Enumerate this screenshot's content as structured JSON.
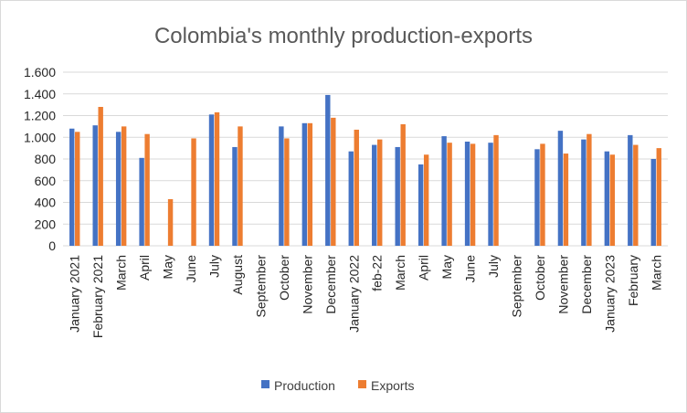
{
  "chart_data": {
    "type": "bar",
    "title": "Colombia's monthly production-exports",
    "xlabel": "",
    "ylabel": "",
    "ylim": [
      0,
      1600
    ],
    "yticks": [
      0,
      200,
      400,
      600,
      800,
      1000,
      1200,
      1400,
      1600
    ],
    "ytick_labels": [
      "0",
      "200",
      "400",
      "600",
      "800",
      "1.000",
      "1.200",
      "1.400",
      "1.600"
    ],
    "grid": true,
    "legend_position": "bottom",
    "categories": [
      "January 2021",
      "February 2021",
      "March",
      "April",
      "May",
      "June",
      "July",
      "August",
      "September",
      "October",
      "November",
      "December",
      "January 2022",
      "feb-22",
      "March",
      "April",
      "May",
      "June",
      "July",
      "September",
      "October",
      "November",
      "December",
      "January 2023",
      "February",
      "March"
    ],
    "series": [
      {
        "name": "Production",
        "color": "#4472c4",
        "values": [
          1080,
          1110,
          1050,
          810,
          null,
          null,
          1210,
          910,
          null,
          1100,
          1130,
          1390,
          870,
          930,
          910,
          750,
          1010,
          960,
          950,
          null,
          890,
          1060,
          980,
          870,
          1020,
          800
        ]
      },
      {
        "name": "Exports",
        "color": "#ed7d31",
        "values": [
          1050,
          1280,
          1100,
          1030,
          430,
          990,
          1230,
          1100,
          null,
          990,
          1130,
          1180,
          1070,
          980,
          1120,
          840,
          950,
          940,
          1020,
          null,
          940,
          850,
          1030,
          840,
          930,
          900
        ]
      }
    ]
  }
}
